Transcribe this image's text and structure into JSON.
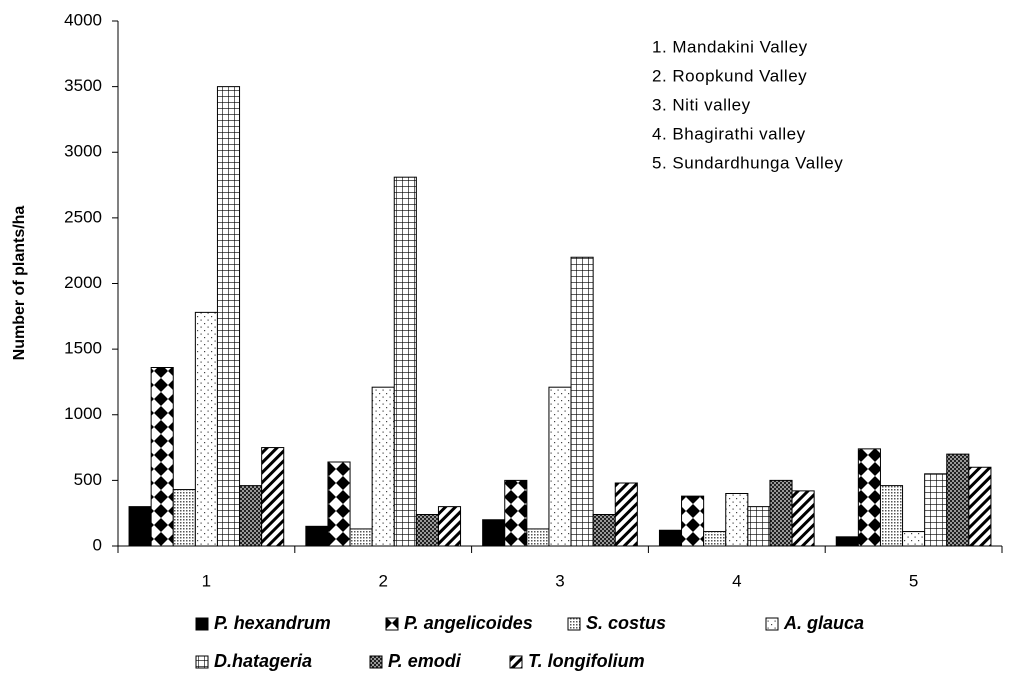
{
  "chart_data": {
    "type": "bar",
    "y_label": "Number of plants/ha",
    "categories": [
      "1",
      "2",
      "3",
      "4",
      "5"
    ],
    "annotations": [
      "1. Mandakini Valley",
      "2. Roopkund Valley",
      "3. Niti valley",
      "4. Bhagirathi valley",
      "5. Sundardhunga Valley"
    ],
    "series": [
      {
        "name": "P. hexandrum",
        "color": "#000000",
        "pattern": "solid",
        "values": [
          300,
          150,
          200,
          120,
          70
        ]
      },
      {
        "name": "P. angelicoides",
        "color": "#000000",
        "pattern": "diamond",
        "values": [
          1360,
          640,
          500,
          380,
          740
        ]
      },
      {
        "name": "S. costus",
        "color": "#000000",
        "pattern": "densedot",
        "values": [
          430,
          130,
          130,
          110,
          460
        ]
      },
      {
        "name": "A. glauca",
        "color": "#000000",
        "pattern": "sparsedot",
        "values": [
          1780,
          1210,
          1210,
          400,
          110
        ]
      },
      {
        "name": "D.hatageria",
        "color": "#000000",
        "pattern": "grid",
        "values": [
          3500,
          2810,
          2200,
          300,
          550
        ]
      },
      {
        "name": "P. emodi",
        "color": "#000000",
        "pattern": "darkcheck",
        "values": [
          460,
          240,
          240,
          500,
          700
        ]
      },
      {
        "name": "T. longifolium",
        "color": "#000000",
        "pattern": "hatch",
        "values": [
          750,
          300,
          480,
          420,
          600
        ]
      }
    ],
    "ylim": [
      0,
      4000
    ],
    "yticks": [
      0,
      500,
      1000,
      1500,
      2000,
      2500,
      3000,
      3500,
      4000
    ],
    "grid": false
  }
}
